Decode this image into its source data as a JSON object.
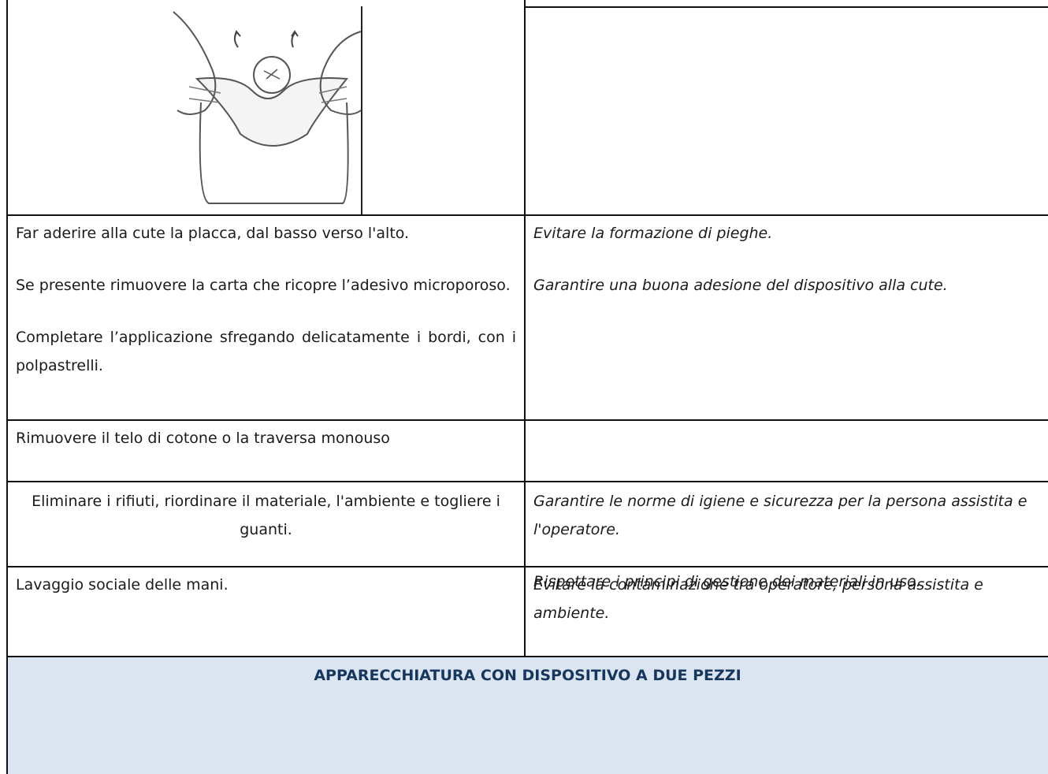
{
  "table": {
    "rows": [
      {
        "left": [
          "Far aderire alla cute  la placca, dal basso verso l'alto.",
          "Se presente rimuovere la carta che ricopre  l’adesivo microporoso.",
          "Completare l’applicazione sfregando delicatamente i bordi, con i polpastrelli."
        ],
        "right": [
          "Evitare la formazione di pieghe.",
          "Garantire una buona adesione del dispositivo alla cute."
        ]
      },
      {
        "left": [
          "Rimuovere il telo di cotone o la traversa monouso"
        ],
        "right": []
      },
      {
        "left": [
          "Eliminare i rifiuti, riordinare il materiale, l'ambiente e togliere i guanti."
        ],
        "right": [
          "Garantire le norme di igiene e sicurezza per la persona assistita e l'operatore.",
          "Rispettare i principi di gestione dei materiali in uso."
        ]
      },
      {
        "left": [
          "Lavaggio sociale delle mani."
        ],
        "right": [
          "Evitare la contaminazione tra operatore, persona assistita e ambiente."
        ]
      }
    ],
    "section_header": "APPARECCHIATURA CON DISPOSITIVO A DUE PEZZI"
  }
}
